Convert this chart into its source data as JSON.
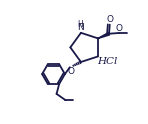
{
  "bg_color": "#ffffff",
  "line_color": "#1a1a4a",
  "bond_lw": 1.3,
  "figsize": [
    1.48,
    1.24
  ],
  "dpi": 100,
  "xlim": [
    0,
    10
  ],
  "ylim": [
    0,
    8.4
  ]
}
